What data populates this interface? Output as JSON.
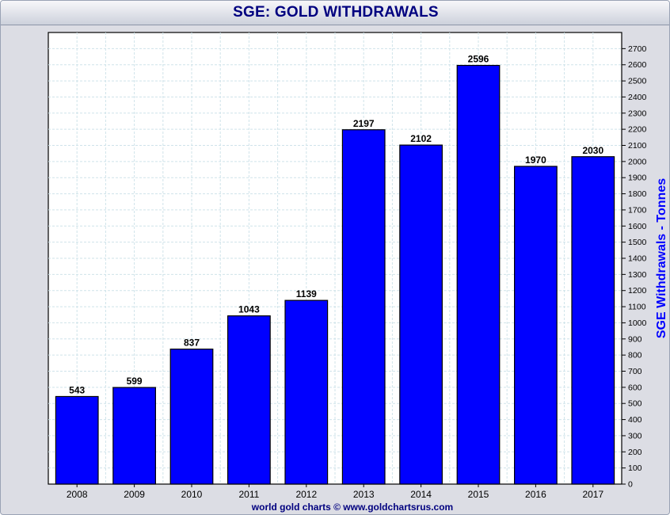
{
  "title": "SGE: GOLD WITHDRAWALS",
  "credit": "world gold charts © www.goldchartsrus.com",
  "colors": {
    "bar": "#0000ff",
    "title": "#00007f",
    "ylabel": "#0000ff",
    "grid": "#cfe3ea"
  },
  "chart_data": {
    "type": "bar",
    "categories": [
      "2008",
      "2009",
      "2010",
      "2011",
      "2012",
      "2013",
      "2014",
      "2015",
      "2016",
      "2017"
    ],
    "values": [
      543,
      599,
      837,
      1043,
      1139,
      2197,
      2102,
      2596,
      1970,
      2030
    ],
    "title": "SGE: GOLD WITHDRAWALS",
    "xlabel": "",
    "ylabel": "SGE Withdrawals - Tonnes",
    "ylim": [
      0,
      2800
    ],
    "yticks": [
      0,
      100,
      200,
      300,
      400,
      500,
      600,
      700,
      800,
      900,
      1000,
      1100,
      1200,
      1300,
      1400,
      1500,
      1600,
      1700,
      1800,
      1900,
      2000,
      2100,
      2200,
      2300,
      2400,
      2500,
      2600,
      2700
    ],
    "y_axis_side": "right",
    "grid": true,
    "data_labels": true,
    "legend": "none"
  }
}
